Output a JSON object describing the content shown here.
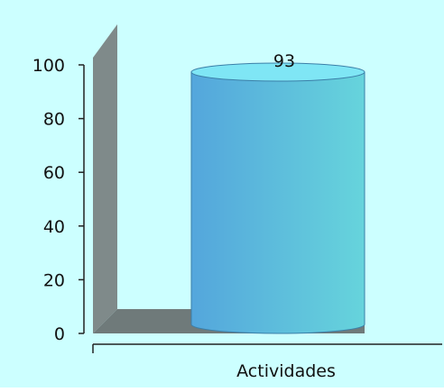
{
  "chart_data": {
    "type": "bar",
    "categories": [
      "Actividades"
    ],
    "values": [
      93
    ],
    "ylim": [
      0,
      100
    ],
    "yticks": [
      0,
      20,
      40,
      60,
      80,
      100
    ],
    "data_labels": [
      "93"
    ],
    "grid": false,
    "legend": "none",
    "style": "3d-cylinder"
  },
  "colors": {
    "background": "#ccffff",
    "wall_side": "#7f8a8a",
    "floor": "#6f7a7a",
    "cylinder_left": "#54a6dc",
    "cylinder_right": "#66d4dc",
    "cylinder_top": "#7fe6f5",
    "axis": "#222222"
  }
}
